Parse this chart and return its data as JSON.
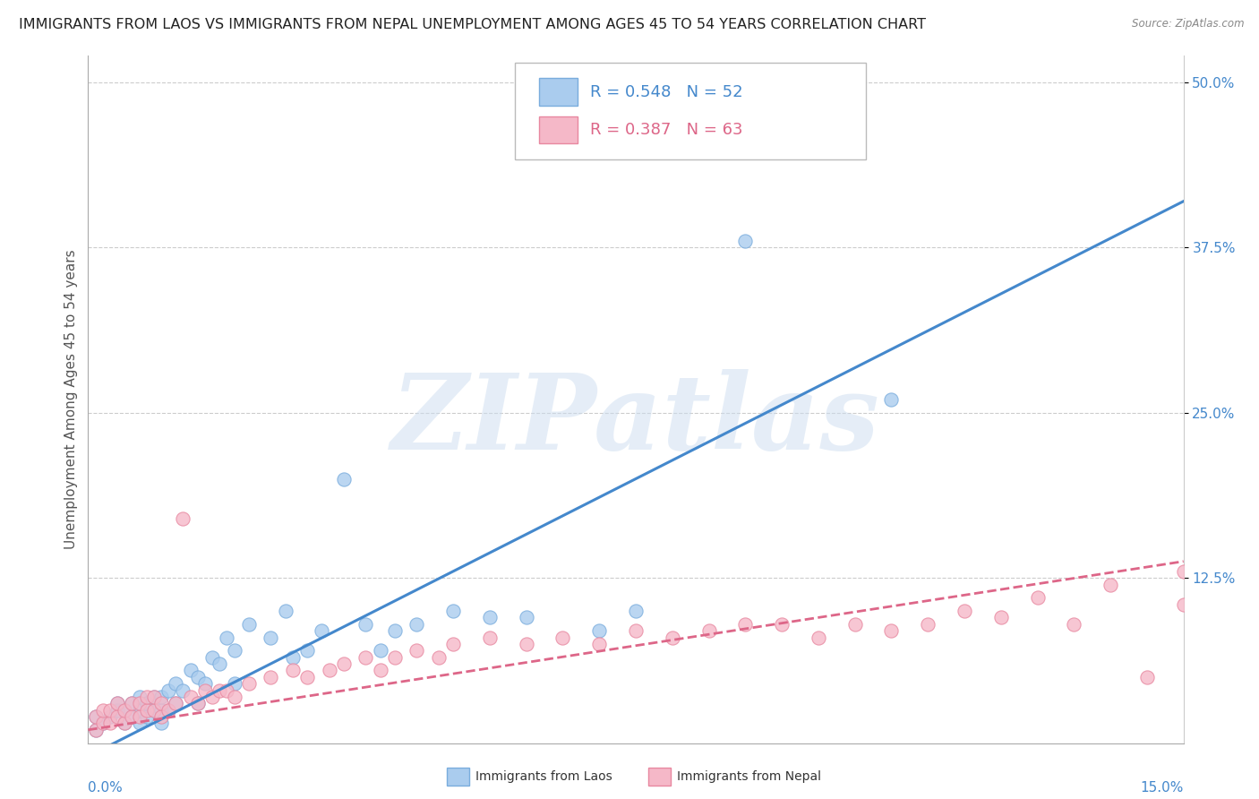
{
  "title": "IMMIGRANTS FROM LAOS VS IMMIGRANTS FROM NEPAL UNEMPLOYMENT AMONG AGES 45 TO 54 YEARS CORRELATION CHART",
  "source": "Source: ZipAtlas.com",
  "ylabel": "Unemployment Among Ages 45 to 54 years",
  "laos_R": 0.548,
  "laos_N": 52,
  "nepal_R": 0.387,
  "nepal_N": 63,
  "laos_color": "#aaccee",
  "laos_edge_color": "#7aaddd",
  "laos_line_color": "#4488cc",
  "nepal_color": "#f5b8c8",
  "nepal_edge_color": "#e888a0",
  "nepal_line_color": "#dd6688",
  "xmin": 0.0,
  "xmax": 0.15,
  "ymin": 0.0,
  "ymax": 0.52,
  "ytick_vals": [
    0.125,
    0.25,
    0.375,
    0.5
  ],
  "ytick_labels": [
    "12.5%",
    "25.0%",
    "37.5%",
    "50.0%"
  ],
  "xtick_left_label": "0.0%",
  "xtick_right_label": "15.0%",
  "laos_scatter_x": [
    0.001,
    0.001,
    0.002,
    0.003,
    0.004,
    0.004,
    0.005,
    0.005,
    0.006,
    0.006,
    0.007,
    0.007,
    0.007,
    0.008,
    0.008,
    0.009,
    0.009,
    0.01,
    0.01,
    0.01,
    0.011,
    0.011,
    0.012,
    0.012,
    0.013,
    0.014,
    0.015,
    0.015,
    0.016,
    0.017,
    0.018,
    0.019,
    0.02,
    0.02,
    0.022,
    0.025,
    0.027,
    0.028,
    0.03,
    0.032,
    0.035,
    0.038,
    0.04,
    0.042,
    0.045,
    0.05,
    0.055,
    0.06,
    0.07,
    0.075,
    0.09,
    0.11
  ],
  "laos_scatter_y": [
    0.01,
    0.02,
    0.015,
    0.02,
    0.025,
    0.03,
    0.015,
    0.025,
    0.02,
    0.03,
    0.015,
    0.025,
    0.035,
    0.02,
    0.03,
    0.025,
    0.035,
    0.015,
    0.025,
    0.035,
    0.025,
    0.04,
    0.03,
    0.045,
    0.04,
    0.055,
    0.03,
    0.05,
    0.045,
    0.065,
    0.06,
    0.08,
    0.045,
    0.07,
    0.09,
    0.08,
    0.1,
    0.065,
    0.07,
    0.085,
    0.2,
    0.09,
    0.07,
    0.085,
    0.09,
    0.1,
    0.095,
    0.095,
    0.085,
    0.1,
    0.38,
    0.26
  ],
  "nepal_scatter_x": [
    0.001,
    0.001,
    0.002,
    0.002,
    0.003,
    0.003,
    0.004,
    0.004,
    0.005,
    0.005,
    0.006,
    0.006,
    0.007,
    0.007,
    0.008,
    0.008,
    0.009,
    0.009,
    0.01,
    0.01,
    0.011,
    0.012,
    0.013,
    0.014,
    0.015,
    0.016,
    0.017,
    0.018,
    0.019,
    0.02,
    0.022,
    0.025,
    0.028,
    0.03,
    0.033,
    0.035,
    0.038,
    0.04,
    0.042,
    0.045,
    0.048,
    0.05,
    0.055,
    0.06,
    0.065,
    0.07,
    0.075,
    0.08,
    0.085,
    0.09,
    0.095,
    0.1,
    0.105,
    0.11,
    0.115,
    0.12,
    0.125,
    0.13,
    0.135,
    0.14,
    0.145,
    0.15,
    0.15
  ],
  "nepal_scatter_y": [
    0.01,
    0.02,
    0.015,
    0.025,
    0.015,
    0.025,
    0.02,
    0.03,
    0.015,
    0.025,
    0.02,
    0.03,
    0.02,
    0.03,
    0.025,
    0.035,
    0.025,
    0.035,
    0.02,
    0.03,
    0.025,
    0.03,
    0.17,
    0.035,
    0.03,
    0.04,
    0.035,
    0.04,
    0.04,
    0.035,
    0.045,
    0.05,
    0.055,
    0.05,
    0.055,
    0.06,
    0.065,
    0.055,
    0.065,
    0.07,
    0.065,
    0.075,
    0.08,
    0.075,
    0.08,
    0.075,
    0.085,
    0.08,
    0.085,
    0.09,
    0.09,
    0.08,
    0.09,
    0.085,
    0.09,
    0.1,
    0.095,
    0.11,
    0.09,
    0.12,
    0.05,
    0.105,
    0.13
  ],
  "background_color": "#ffffff",
  "grid_color": "#cccccc",
  "title_fontsize": 11.5,
  "axis_label_fontsize": 11,
  "tick_fontsize": 11,
  "legend_fontsize": 13,
  "watermark_text": "ZIPatlas",
  "watermark_color": "#ccddf0",
  "watermark_alpha": 0.5,
  "watermark_fontsize": 85,
  "legend_label_laos": "Immigrants from Laos",
  "legend_label_nepal": "Immigrants from Nepal",
  "laos_trend_slope": 2.8,
  "laos_trend_intercept": -0.01,
  "nepal_trend_slope": 0.85,
  "nepal_trend_intercept": 0.01
}
